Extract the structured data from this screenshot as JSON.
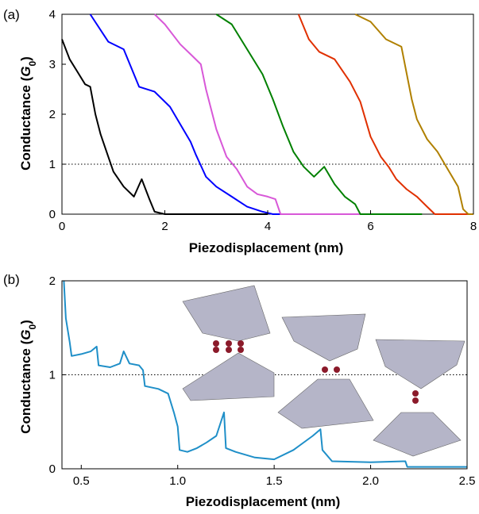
{
  "chart_data": [
    {
      "panel_label": "(a)",
      "type": "line",
      "xlabel": "Piezodisplacement (nm)",
      "ylabel": "Conductance (",
      "ylabel_symbol": "G",
      "ylabel_sub": "0",
      "ylabel_close": ")",
      "xlim": [
        0,
        8
      ],
      "ylim": [
        0,
        4
      ],
      "xticks": [
        "0",
        "2",
        "4",
        "6",
        "8"
      ],
      "yticks": [
        "0",
        "1",
        "2",
        "3",
        "4"
      ],
      "reference_line_y": 1,
      "series": [
        {
          "color": "#000000",
          "x": [
            0,
            0.15,
            0.3,
            0.45,
            0.55,
            0.65,
            0.75,
            0.9,
            1.0,
            1.2,
            1.4,
            1.55,
            1.7,
            1.8,
            2.0,
            4.0
          ],
          "y": [
            3.5,
            3.1,
            2.85,
            2.6,
            2.55,
            2.0,
            1.6,
            1.15,
            0.85,
            0.55,
            0.35,
            0.7,
            0.3,
            0.05,
            0,
            0
          ]
        },
        {
          "color": "#0000ff",
          "x": [
            0.55,
            0.9,
            1.2,
            1.5,
            1.8,
            2.1,
            2.3,
            2.5,
            2.6,
            2.8,
            3.0,
            3.3,
            3.6,
            3.9,
            4.1,
            6.0
          ],
          "y": [
            4.0,
            3.45,
            3.3,
            2.55,
            2.45,
            2.15,
            1.8,
            1.45,
            1.2,
            0.75,
            0.55,
            0.35,
            0.15,
            0.05,
            0,
            0
          ]
        },
        {
          "color": "#d858d8",
          "x": [
            1.8,
            2.0,
            2.3,
            2.5,
            2.7,
            2.8,
            3.0,
            3.2,
            3.4,
            3.6,
            3.8,
            4.0,
            4.15,
            4.25,
            6.0
          ],
          "y": [
            4.0,
            3.8,
            3.4,
            3.2,
            3.0,
            2.5,
            1.7,
            1.15,
            0.9,
            0.55,
            0.4,
            0.35,
            0.3,
            0,
            0
          ]
        },
        {
          "color": "#008000",
          "x": [
            3.0,
            3.3,
            3.6,
            3.9,
            4.1,
            4.3,
            4.5,
            4.7,
            4.9,
            5.1,
            5.3,
            5.5,
            5.7,
            5.8,
            7.0
          ],
          "y": [
            4.0,
            3.8,
            3.3,
            2.8,
            2.3,
            1.75,
            1.25,
            0.95,
            0.75,
            0.95,
            0.6,
            0.35,
            0.2,
            0,
            0
          ]
        },
        {
          "color": "#e03000",
          "x": [
            4.6,
            4.8,
            5.0,
            5.3,
            5.6,
            5.8,
            6.0,
            6.2,
            6.35,
            6.5,
            6.7,
            6.9,
            7.1,
            7.25,
            8.0
          ],
          "y": [
            4.0,
            3.5,
            3.25,
            3.1,
            2.65,
            2.25,
            1.55,
            1.15,
            0.95,
            0.7,
            0.5,
            0.35,
            0.15,
            0,
            0
          ]
        },
        {
          "color": "#b08000",
          "x": [
            5.7,
            6.0,
            6.3,
            6.6,
            6.8,
            6.9,
            7.1,
            7.3,
            7.5,
            7.7,
            7.8,
            7.9,
            8.0
          ],
          "y": [
            4.0,
            3.85,
            3.5,
            3.35,
            2.3,
            1.9,
            1.5,
            1.25,
            0.9,
            0.55,
            0.1,
            0,
            0
          ]
        }
      ]
    },
    {
      "panel_label": "(b)",
      "type": "line",
      "xlabel": "Piezodisplacement (nm)",
      "ylabel": "Conductance (",
      "ylabel_symbol": "G",
      "ylabel_sub": "0",
      "ylabel_close": ")",
      "xlim": [
        0.4,
        2.5
      ],
      "ylim": [
        0,
        2
      ],
      "xticks": [
        "0.5",
        "1.0",
        "1.5",
        "2.0",
        "2.5"
      ],
      "xtick_values": [
        0.5,
        1.0,
        1.5,
        2.0,
        2.5
      ],
      "yticks": [
        "0",
        "1",
        "2"
      ],
      "reference_line_y": 1,
      "series": [
        {
          "color": "#1f8fc8",
          "x": [
            0.41,
            0.42,
            0.44,
            0.45,
            0.5,
            0.55,
            0.58,
            0.59,
            0.65,
            0.7,
            0.72,
            0.75,
            0.8,
            0.82,
            0.83,
            0.9,
            0.95,
            0.98,
            1.0,
            1.01,
            1.05,
            1.1,
            1.15,
            1.2,
            1.24,
            1.25,
            1.3,
            1.4,
            1.5,
            1.6,
            1.7,
            1.74,
            1.75,
            1.8,
            2.0,
            2.18,
            2.19,
            2.5
          ],
          "y": [
            2.0,
            1.6,
            1.35,
            1.2,
            1.22,
            1.25,
            1.3,
            1.1,
            1.08,
            1.12,
            1.25,
            1.12,
            1.1,
            1.05,
            0.88,
            0.85,
            0.8,
            0.6,
            0.45,
            0.2,
            0.18,
            0.22,
            0.28,
            0.35,
            0.6,
            0.22,
            0.18,
            0.12,
            0.1,
            0.2,
            0.35,
            0.42,
            0.2,
            0.08,
            0.07,
            0.08,
            0.02,
            0.02
          ]
        }
      ]
    }
  ]
}
